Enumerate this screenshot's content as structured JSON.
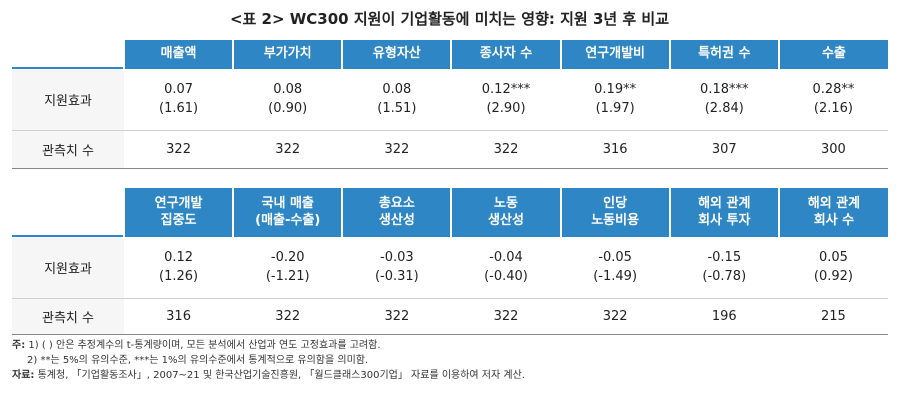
{
  "title": "<표 2> WC300 지원이 기업활동에 미치는 영향: 지원 3년 후 비교",
  "table1": {
    "headers": [
      "매출액",
      "부가가치",
      "유형자산",
      "종사자 수",
      "연구개발비",
      "특허권 수",
      "수출"
    ],
    "effect_label": "지원효과",
    "coef": [
      "0.07",
      "0.08",
      "0.08",
      "0.12***",
      "0.19**",
      "0.18***",
      "0.28**"
    ],
    "tstat": [
      "(1.61)",
      "(0.90)",
      "(1.51)",
      "(2.90)",
      "(1.97)",
      "(2.84)",
      "(2.16)"
    ],
    "obs_label": "관측치 수",
    "obs": [
      "322",
      "322",
      "322",
      "322",
      "316",
      "307",
      "300"
    ]
  },
  "table2": {
    "headers": [
      [
        "연구개발",
        "집중도"
      ],
      [
        "국내 매출",
        "(매출-수출)"
      ],
      [
        "총요소",
        "생산성"
      ],
      [
        "노동",
        "생산성"
      ],
      [
        "인당",
        "노동비용"
      ],
      [
        "해외 관계",
        "회사 투자"
      ],
      [
        "해외 관계",
        "회사 수"
      ]
    ],
    "effect_label": "지원효과",
    "coef": [
      "0.12",
      "-0.20",
      "-0.03",
      "-0.04",
      "-0.05",
      "-0.15",
      "0.05"
    ],
    "tstat": [
      "(1.26)",
      "(-1.21)",
      "(-0.31)",
      "(-0.40)",
      "(-1.49)",
      "(-0.78)",
      "(0.92)"
    ],
    "obs_label": "관측치 수",
    "obs": [
      "316",
      "322",
      "322",
      "322",
      "322",
      "196",
      "215"
    ]
  },
  "notes": {
    "label": "주:",
    "note1": "1) ( ) 안은 추정계수의 t-통계량이며, 모든 분석에서 산업과 연도 고정효과를 고려함.",
    "note2": "2) **는 5%의 유의수준, ***는 1%의 유의수준에서 통계적으로 유의함을 의미함.",
    "source_label": "자료:",
    "source": "통계청, 「기업활동조사」, 2007~21 및 한국산업기술진흥원, 「월드클래스300기업」 자료를 이용하여 저자 계산."
  }
}
